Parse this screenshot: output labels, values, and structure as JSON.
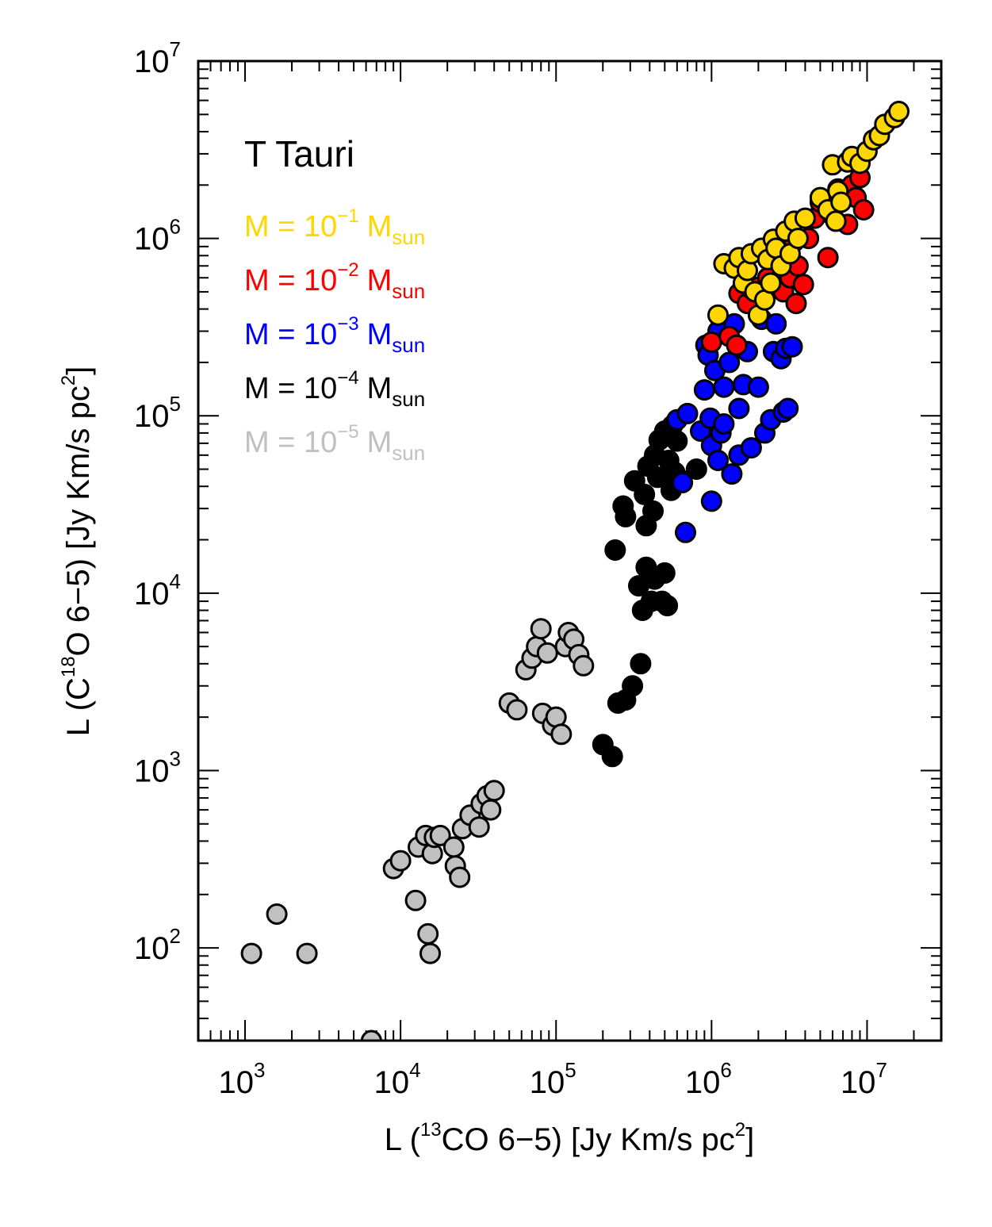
{
  "chart_data": {
    "type": "scatter",
    "title": "T Tauri",
    "xlabel": {
      "prefix": "L (",
      "sup": "13",
      "mid": "CO 6−5) [Jy Km/s pc",
      "sup2": "2",
      "suffix": "]"
    },
    "ylabel": {
      "prefix": "L (C",
      "sup": "18",
      "mid": "O 6−5) [Jy Km/s pc",
      "sup2": "2",
      "suffix": "]"
    },
    "x_scale": "log",
    "y_scale": "log",
    "xlim": [
      500,
      30000000
    ],
    "ylim": [
      30,
      10000000
    ],
    "x_ticks": [
      {
        "base": "10",
        "exp": "3",
        "value": 1000
      },
      {
        "base": "10",
        "exp": "4",
        "value": 10000
      },
      {
        "base": "10",
        "exp": "5",
        "value": 100000
      },
      {
        "base": "10",
        "exp": "6",
        "value": 1000000
      },
      {
        "base": "10",
        "exp": "7",
        "value": 10000000
      }
    ],
    "y_ticks": [
      {
        "base": "10",
        "exp": "2",
        "value": 100
      },
      {
        "base": "10",
        "exp": "3",
        "value": 1000
      },
      {
        "base": "10",
        "exp": "4",
        "value": 10000
      },
      {
        "base": "10",
        "exp": "5",
        "value": 100000
      },
      {
        "base": "10",
        "exp": "6",
        "value": 1000000
      },
      {
        "base": "10",
        "exp": "7",
        "value": 10000000
      }
    ],
    "grid": false,
    "legend_position": "top-left",
    "series": [
      {
        "name": "M = 10−5 Msun",
        "label": {
          "pre": "M = 10",
          "exp": "−5",
          "unit": "M",
          "sub": "sun"
        },
        "color": "#c0c0c0",
        "points": [
          [
            1100,
            93
          ],
          [
            1600,
            155
          ],
          [
            2500,
            93
          ],
          [
            6500,
            30
          ],
          [
            9000,
            280
          ],
          [
            10000,
            310
          ],
          [
            12500,
            185
          ],
          [
            13000,
            370
          ],
          [
            14500,
            430
          ],
          [
            15000,
            120
          ],
          [
            15500,
            93
          ],
          [
            16000,
            340
          ],
          [
            16500,
            420
          ],
          [
            18000,
            430
          ],
          [
            22000,
            370
          ],
          [
            22500,
            290
          ],
          [
            24000,
            250
          ],
          [
            25000,
            470
          ],
          [
            28000,
            560
          ],
          [
            32000,
            480
          ],
          [
            33000,
            650
          ],
          [
            36000,
            720
          ],
          [
            38000,
            600
          ],
          [
            40000,
            770
          ],
          [
            50000,
            2400
          ],
          [
            56000,
            2200
          ],
          [
            64000,
            3700
          ],
          [
            70000,
            4300
          ],
          [
            75000,
            5000
          ],
          [
            80000,
            6300
          ],
          [
            82000,
            2100
          ],
          [
            88000,
            4600
          ],
          [
            95000,
            1800
          ],
          [
            100000,
            2000
          ],
          [
            108000,
            1600
          ],
          [
            115000,
            5000
          ],
          [
            120000,
            6000
          ],
          [
            130000,
            5500
          ],
          [
            140000,
            4500
          ],
          [
            150000,
            3900
          ]
        ]
      },
      {
        "name": "M = 10−4 Msun",
        "label": {
          "pre": "M = 10",
          "exp": "−4",
          "unit": "M",
          "sub": "sun"
        },
        "color": "#000000",
        "points": [
          [
            200000,
            1400
          ],
          [
            230000,
            1200
          ],
          [
            240000,
            17500
          ],
          [
            250000,
            2400
          ],
          [
            280000,
            2500
          ],
          [
            270000,
            31000
          ],
          [
            280000,
            27000
          ],
          [
            310000,
            3000
          ],
          [
            320000,
            43000
          ],
          [
            340000,
            11000
          ],
          [
            350000,
            4000
          ],
          [
            360000,
            8000
          ],
          [
            370000,
            36000
          ],
          [
            380000,
            14000
          ],
          [
            380000,
            24000
          ],
          [
            390000,
            52000
          ],
          [
            410000,
            9000
          ],
          [
            420000,
            29000
          ],
          [
            430000,
            12000
          ],
          [
            430000,
            60000
          ],
          [
            450000,
            45000
          ],
          [
            460000,
            73000
          ],
          [
            480000,
            9000
          ],
          [
            500000,
            13000
          ],
          [
            500000,
            82000
          ],
          [
            520000,
            8500
          ],
          [
            530000,
            56000
          ],
          [
            550000,
            38000
          ],
          [
            560000,
            88000
          ],
          [
            580000,
            48000
          ],
          [
            600000,
            72000
          ],
          [
            620000,
            44000
          ],
          [
            800000,
            50000
          ]
        ]
      },
      {
        "name": "M = 10−3 Msun",
        "label": {
          "pre": "M = 10",
          "exp": "−3",
          "unit": "M",
          "sub": "sun"
        },
        "color": "#0000ff",
        "points": [
          [
            600000,
            95000
          ],
          [
            650000,
            42000
          ],
          [
            680000,
            22000
          ],
          [
            700000,
            103000
          ],
          [
            850000,
            82000
          ],
          [
            900000,
            140000
          ],
          [
            920000,
            250000
          ],
          [
            950000,
            220000
          ],
          [
            980000,
            97000
          ],
          [
            1000000,
            33000
          ],
          [
            1000000,
            68000
          ],
          [
            1050000,
            180000
          ],
          [
            1100000,
            56000
          ],
          [
            1100000,
            300000
          ],
          [
            1150000,
            80000
          ],
          [
            1200000,
            145000
          ],
          [
            1200000,
            90000
          ],
          [
            1300000,
            200000
          ],
          [
            1350000,
            47000
          ],
          [
            1400000,
            330000
          ],
          [
            1500000,
            110000
          ],
          [
            1500000,
            60000
          ],
          [
            1600000,
            150000
          ],
          [
            1700000,
            230000
          ],
          [
            1800000,
            66000
          ],
          [
            1900000,
            420000
          ],
          [
            2000000,
            145000
          ],
          [
            2100000,
            350000
          ],
          [
            2200000,
            80000
          ],
          [
            2300000,
            600000
          ],
          [
            2400000,
            95000
          ],
          [
            2500000,
            230000
          ],
          [
            2600000,
            330000
          ],
          [
            2800000,
            210000
          ],
          [
            2900000,
            105000
          ],
          [
            3000000,
            240000
          ],
          [
            3100000,
            110000
          ],
          [
            3300000,
            245000
          ]
        ]
      },
      {
        "name": "M = 10−2 Msun",
        "label": {
          "pre": "M = 10",
          "exp": "−2",
          "unit": "M",
          "sub": "sun"
        },
        "color": "#ff0000",
        "points": [
          [
            1000000,
            260000
          ],
          [
            1300000,
            280000
          ],
          [
            1450000,
            250000
          ],
          [
            1500000,
            490000
          ],
          [
            1700000,
            430000
          ],
          [
            1800000,
            520000
          ],
          [
            2000000,
            530000
          ],
          [
            2300000,
            600000
          ],
          [
            2600000,
            750000
          ],
          [
            2900000,
            500000
          ],
          [
            3000000,
            820000
          ],
          [
            3200000,
            600000
          ],
          [
            3400000,
            960000
          ],
          [
            3500000,
            430000
          ],
          [
            3600000,
            700000
          ],
          [
            3900000,
            550000
          ],
          [
            4200000,
            1000000
          ],
          [
            4600000,
            1300000
          ],
          [
            5000000,
            1600000
          ],
          [
            5600000,
            780000
          ],
          [
            6000000,
            1350000
          ],
          [
            6500000,
            1900000
          ],
          [
            7000000,
            1700000
          ],
          [
            7500000,
            1200000
          ],
          [
            8000000,
            2000000
          ],
          [
            8500000,
            1700000
          ],
          [
            9000000,
            2200000
          ],
          [
            9500000,
            1450000
          ]
        ]
      },
      {
        "name": "M = 10−1 Msun",
        "label": {
          "pre": "M = 10",
          "exp": "−1",
          "unit": "M",
          "sub": "sun"
        },
        "color": "#ffd700",
        "points": [
          [
            1100000,
            370000
          ],
          [
            1200000,
            720000
          ],
          [
            1400000,
            680000
          ],
          [
            1500000,
            780000
          ],
          [
            1600000,
            560000
          ],
          [
            1700000,
            660000
          ],
          [
            1800000,
            820000
          ],
          [
            1900000,
            500000
          ],
          [
            2000000,
            370000
          ],
          [
            2100000,
            880000
          ],
          [
            2200000,
            450000
          ],
          [
            2300000,
            760000
          ],
          [
            2400000,
            560000
          ],
          [
            2500000,
            990000
          ],
          [
            2600000,
            880000
          ],
          [
            2800000,
            700000
          ],
          [
            3000000,
            1100000
          ],
          [
            3200000,
            820000
          ],
          [
            3400000,
            1250000
          ],
          [
            3600000,
            1000000
          ],
          [
            4000000,
            1300000
          ],
          [
            5000000,
            1700000
          ],
          [
            5600000,
            1450000
          ],
          [
            6000000,
            2600000
          ],
          [
            6300000,
            1250000
          ],
          [
            6500000,
            1850000
          ],
          [
            6800000,
            1600000
          ],
          [
            7500000,
            2700000
          ],
          [
            8000000,
            2900000
          ],
          [
            9000000,
            2650000
          ],
          [
            10000000,
            3100000
          ],
          [
            11000000,
            3600000
          ],
          [
            12000000,
            3800000
          ],
          [
            13000000,
            4400000
          ],
          [
            15000000,
            4800000
          ],
          [
            16000000,
            5200000
          ]
        ]
      }
    ]
  }
}
